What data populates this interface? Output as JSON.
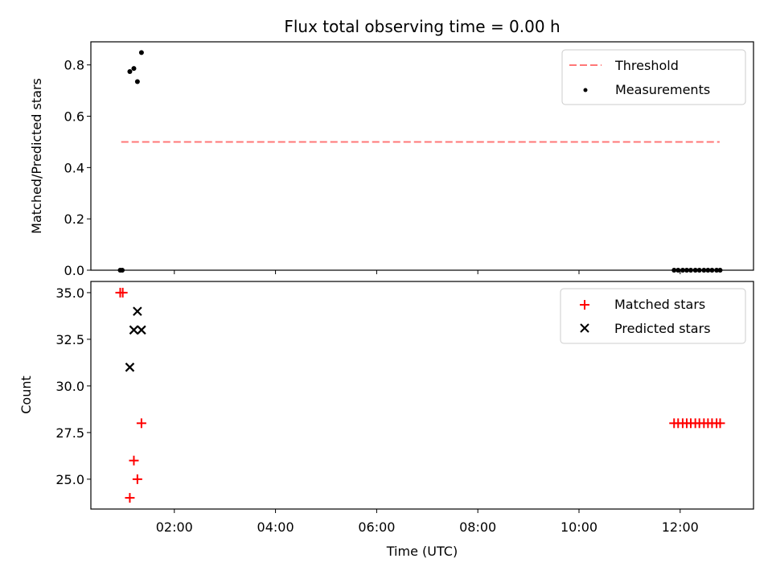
{
  "chart_data": {
    "title": "Flux total observing time = 0.00 h",
    "xlabel": "Time (UTC)",
    "xlim": [
      0.35,
      13.45
    ],
    "xticks": [
      {
        "value": 2,
        "label": "02:00"
      },
      {
        "value": 4,
        "label": "04:00"
      },
      {
        "value": 6,
        "label": "06:00"
      },
      {
        "value": 8,
        "label": "08:00"
      },
      {
        "value": 10,
        "label": "10:00"
      },
      {
        "value": 12,
        "label": "12:00"
      }
    ],
    "panels": [
      {
        "type": "scatter",
        "ylabel": "Matched/Predicted stars",
        "ylim": [
          0,
          0.89
        ],
        "yticks": [
          "0.0",
          "0.2",
          "0.4",
          "0.6",
          "0.8"
        ],
        "ytick_values": [
          0,
          0.2,
          0.4,
          0.6,
          0.8
        ],
        "legend_position": "top-right",
        "series": [
          {
            "name": "Threshold",
            "kind": "dashed-line",
            "color": "#ff7777",
            "x": [
              0.95,
              12.78
            ],
            "y": [
              0.5,
              0.5
            ]
          },
          {
            "name": "Measurements",
            "kind": "dot",
            "color": "#000000",
            "x": [
              0.93,
              0.97,
              1.12,
              1.2,
              1.27,
              1.35,
              11.88,
              11.96,
              12.05,
              12.13,
              12.21,
              12.3,
              12.38,
              12.47,
              12.55,
              12.63,
              12.72,
              12.79
            ],
            "y": [
              0.0,
              0.0,
              0.774,
              0.786,
              0.735,
              0.848,
              0.0,
              0.0,
              0.0,
              0.0,
              0.0,
              0.0,
              0.0,
              0.0,
              0.0,
              0.0,
              0.0,
              0.0
            ]
          }
        ]
      },
      {
        "type": "scatter",
        "ylabel": "Count",
        "ylim": [
          23.4,
          35.6
        ],
        "yticks": [
          "25.0",
          "27.5",
          "30.0",
          "32.5",
          "35.0"
        ],
        "ytick_values": [
          25,
          27.5,
          30,
          32.5,
          35
        ],
        "legend_position": "top-right",
        "series": [
          {
            "name": "Matched stars",
            "kind": "plus",
            "color": "#ff0000",
            "x": [
              0.93,
              0.98,
              1.12,
              1.2,
              1.27,
              1.35,
              11.88,
              11.96,
              12.05,
              12.13,
              12.21,
              12.3,
              12.38,
              12.47,
              12.55,
              12.63,
              12.72,
              12.79
            ],
            "y": [
              35,
              35,
              24,
              26,
              25,
              28,
              28,
              28,
              28,
              28,
              28,
              28,
              28,
              28,
              28,
              28,
              28,
              28
            ]
          },
          {
            "name": "Predicted stars",
            "kind": "cross",
            "color": "#000000",
            "x": [
              1.12,
              1.2,
              1.27,
              1.35
            ],
            "y": [
              31,
              33,
              34,
              33
            ]
          }
        ]
      }
    ]
  }
}
